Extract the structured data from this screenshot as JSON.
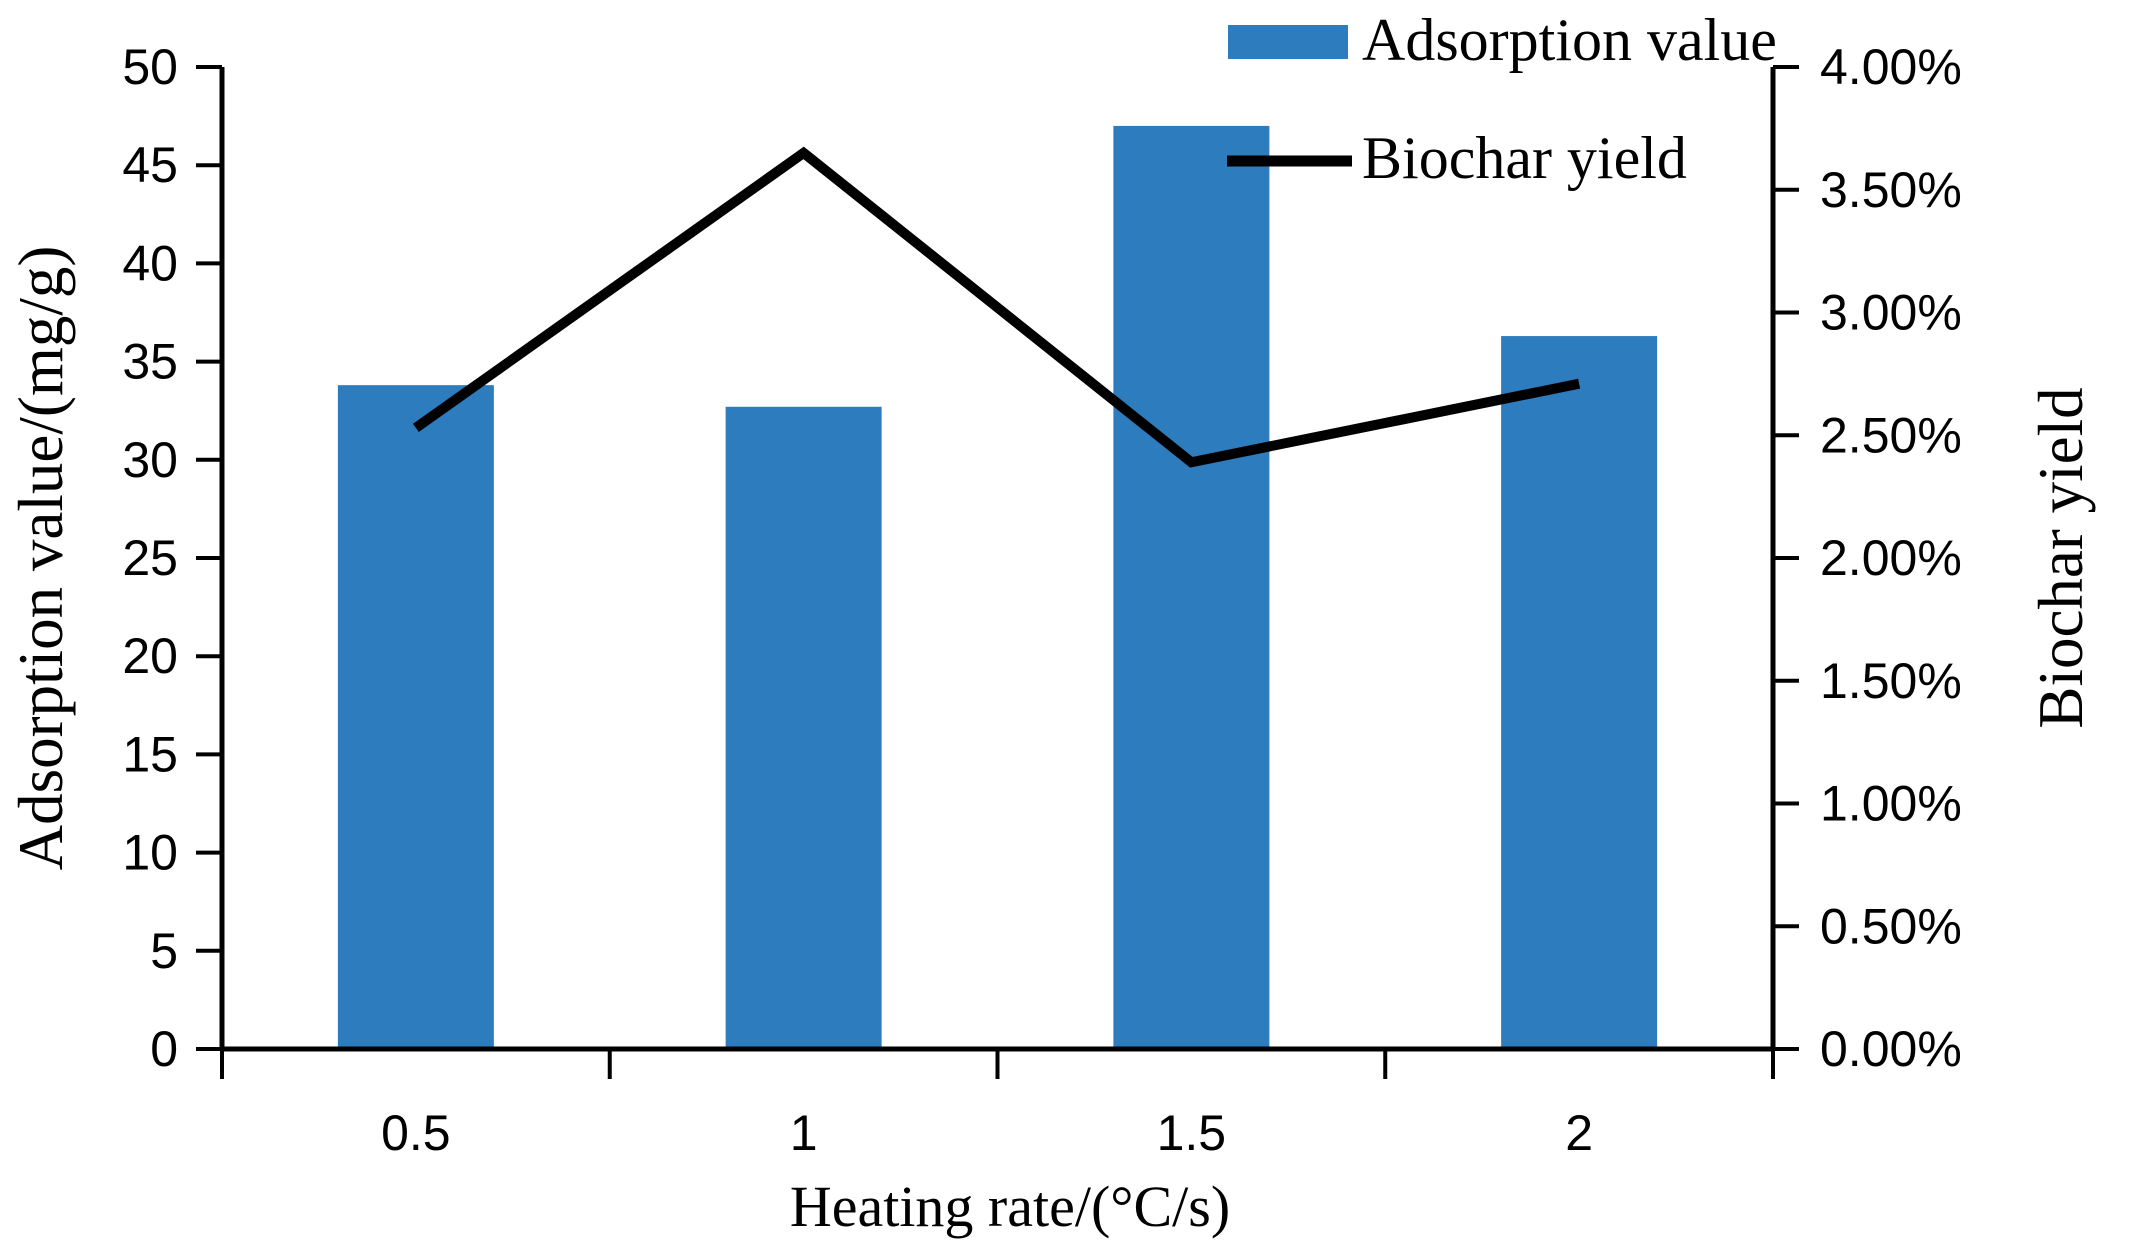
{
  "chart_data": {
    "type": "combo-bar-line",
    "categories": [
      "0.5",
      "1",
      "1.5",
      "2"
    ],
    "series": [
      {
        "name": "Adsorption value",
        "type": "bar",
        "axis": "left",
        "color": "#2D7DBE",
        "values": [
          33.8,
          32.7,
          47.0,
          36.3
        ]
      },
      {
        "name": "Biochar yield",
        "type": "line",
        "axis": "right",
        "color": "#000000",
        "unit": "%",
        "values": [
          2.53,
          3.65,
          2.39,
          2.71
        ]
      }
    ],
    "x_axis": {
      "label": "Heating rate/(°C/s)",
      "tick_labels": [
        "0.5",
        "1",
        "1.5",
        "2"
      ]
    },
    "left_axis": {
      "label": "Adsorption value/(mg/g)",
      "min": 0,
      "max": 50,
      "step": 5,
      "tick_labels": [
        "50",
        "45",
        "40",
        "35",
        "30",
        "25",
        "20",
        "15",
        "10",
        "5",
        "0"
      ]
    },
    "right_axis": {
      "label": "Biochar yield",
      "min": 0,
      "max": 4,
      "step": 0.5,
      "tick_labels": [
        "4.00%",
        "3.50%",
        "3.00%",
        "2.50%",
        "2.00%",
        "1.50%",
        "1.00%",
        "0.50%",
        "0.00%"
      ]
    },
    "legend": {
      "position": "top-right-inside",
      "items": [
        "Adsorption value",
        "Biochar yield"
      ]
    },
    "grid": false,
    "background": "#ffffff",
    "axis_color": "#000000"
  }
}
